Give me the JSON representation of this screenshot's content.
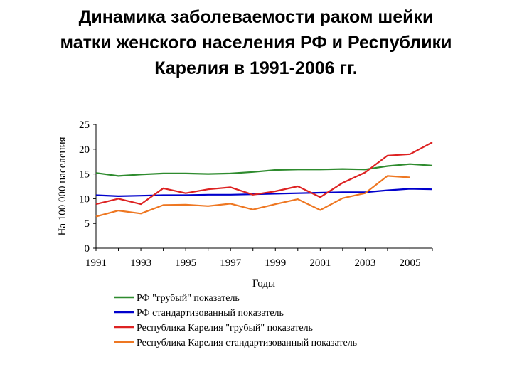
{
  "title_lines": [
    "Динамика заболеваемости раком шейки",
    "матки женского населения РФ и Республики",
    "Карелия в 1991-2006 гг."
  ],
  "chart_data": {
    "type": "line",
    "x": [
      1991,
      1992,
      1993,
      1994,
      1995,
      1996,
      1997,
      1998,
      1999,
      2000,
      2001,
      2002,
      2003,
      2004,
      2005,
      2006
    ],
    "xlabel": "Годы",
    "ylabel": "На 100 000 населения",
    "xlim": [
      1991,
      2006
    ],
    "ylim": [
      0,
      25
    ],
    "x_ticks": [
      "1991",
      "1993",
      "1995",
      "1997",
      "1999",
      "2001",
      "2003",
      "2005"
    ],
    "y_ticks": [
      "0",
      "5",
      "10",
      "15",
      "20",
      "25"
    ],
    "grid": false,
    "legend_position": "bottom",
    "series": [
      {
        "name": "РФ \"грубый\" показатель",
        "color": "#2e8b2e",
        "values": [
          15.2,
          14.6,
          14.9,
          15.1,
          15.1,
          15.0,
          15.1,
          15.4,
          15.8,
          15.9,
          15.9,
          16.0,
          15.9,
          16.6,
          17.0,
          16.7
        ]
      },
      {
        "name": "РФ стандартизованный показатель",
        "color": "#0000cc",
        "values": [
          10.7,
          10.5,
          10.6,
          10.7,
          10.7,
          10.8,
          10.8,
          10.9,
          11.0,
          11.1,
          11.2,
          11.3,
          11.3,
          11.7,
          12.0,
          11.9
        ]
      },
      {
        "name": "Республика Карелия \"грубый\" показатель",
        "color": "#dd2222",
        "values": [
          8.9,
          10.0,
          8.9,
          12.1,
          11.1,
          11.9,
          12.3,
          10.8,
          11.5,
          12.5,
          10.3,
          13.2,
          15.3,
          18.7,
          19.0,
          21.4
        ]
      },
      {
        "name": "Республика Карелия стандартизованный показатель",
        "color": "#ee7722",
        "values": [
          6.4,
          7.6,
          7.0,
          8.7,
          8.8,
          8.5,
          9.0,
          7.8,
          8.9,
          9.9,
          7.7,
          10.1,
          11.1,
          14.6,
          14.3,
          null
        ]
      }
    ]
  }
}
